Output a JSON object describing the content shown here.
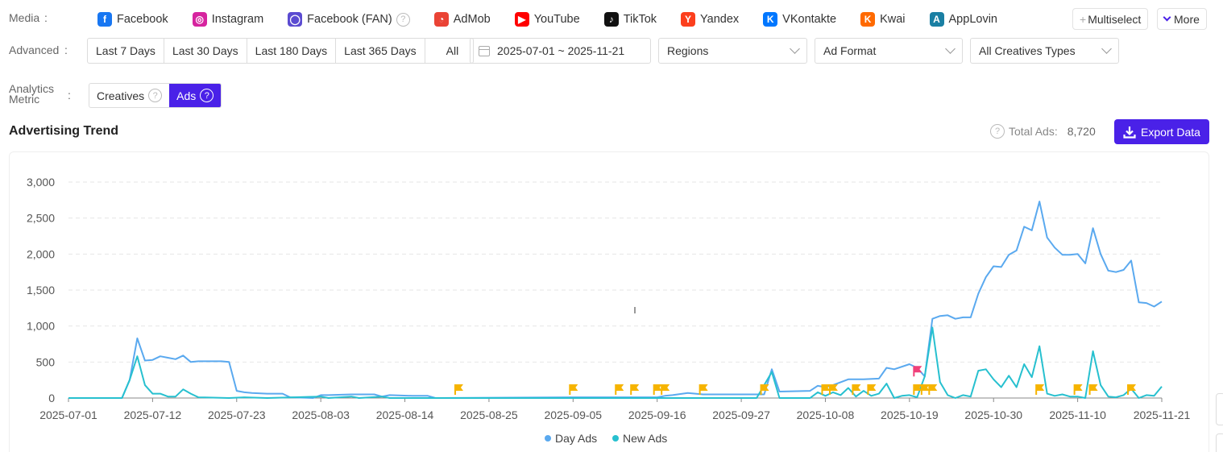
{
  "filters": {
    "media_label": "Media",
    "advanced_label": "Advanced",
    "metric_label_line1": "Analytics",
    "metric_label_line2": "Metric",
    "colon": ":",
    "media": [
      {
        "label": "Facebook",
        "icon": "facebook-icon",
        "color": "#1877f2",
        "glyph": "f"
      },
      {
        "label": "Instagram",
        "icon": "instagram-icon",
        "color": "#d6249f",
        "glyph": "◎"
      },
      {
        "label": "Facebook (FAN)",
        "icon": "facebook-audience-network-icon",
        "color": "#5b4bd1",
        "glyph": "◯"
      },
      {
        "label": "AdMob",
        "icon": "admob-icon",
        "color": "#ea4335",
        "glyph": "◔"
      },
      {
        "label": "YouTube",
        "icon": "youtube-icon",
        "color": "#ff0000",
        "glyph": "▶"
      },
      {
        "label": "TikTok",
        "icon": "tiktok-icon",
        "color": "#111111",
        "glyph": "♪"
      },
      {
        "label": "Yandex",
        "icon": "yandex-icon",
        "color": "#fc3f1d",
        "glyph": "Y"
      },
      {
        "label": "VKontakte",
        "icon": "vkontakte-icon",
        "color": "#0077ff",
        "glyph": "K"
      },
      {
        "label": "Kwai",
        "icon": "kwai-icon",
        "color": "#ff6a00",
        "glyph": "K"
      },
      {
        "label": "AppLovin",
        "icon": "applovin-icon",
        "color": "#1a7fa3",
        "glyph": "A"
      }
    ],
    "multiselect_label": "Multiselect",
    "more_label": "More",
    "date_ranges": [
      "Last 7 Days",
      "Last 30 Days",
      "Last 180 Days",
      "Last 365 Days",
      "All"
    ],
    "date_value": "2025-07-01 ~ 2025-11-21",
    "regions_label": "Regions",
    "ad_format_label": "Ad Format",
    "creative_types_label": "All Creatives Types",
    "metric_options": [
      "Creatives",
      "Ads"
    ],
    "metric_selected": "Ads"
  },
  "trend": {
    "title": "Advertising Trend",
    "total_label": "Total Ads:",
    "total_value": "8,720",
    "export_label": "Export Data"
  },
  "colors": {
    "accent": "#4a21e8",
    "day_ads": "#5aa9ef",
    "new_ads": "#27c0cf",
    "flag": "#f6b400",
    "flag_alt": "#f0407a"
  },
  "chart_data": {
    "type": "line",
    "x_range": [
      "2025-07-01",
      "2025-11-21"
    ],
    "x_ticks": [
      "2025-07-01",
      "2025-07-12",
      "2025-07-23",
      "2025-08-03",
      "2025-08-14",
      "2025-08-25",
      "2025-09-05",
      "2025-09-16",
      "2025-09-27",
      "2025-10-08",
      "2025-10-19",
      "2025-10-30",
      "2025-11-10",
      "2025-11-21"
    ],
    "y_ticks": [
      "0",
      "500",
      "1,000",
      "1,500",
      "2,000",
      "2,500",
      "3,000"
    ],
    "ylim": [
      0,
      3000
    ],
    "grid": true,
    "legend_position": "bottom-center",
    "series": [
      {
        "name": "Day Ads",
        "points": [
          [
            "2025-07-01",
            0
          ],
          [
            "2025-07-08",
            0
          ],
          [
            "2025-07-09",
            250
          ],
          [
            "2025-07-10",
            830
          ],
          [
            "2025-07-11",
            520
          ],
          [
            "2025-07-12",
            530
          ],
          [
            "2025-07-13",
            580
          ],
          [
            "2025-07-14",
            560
          ],
          [
            "2025-07-15",
            540
          ],
          [
            "2025-07-16",
            590
          ],
          [
            "2025-07-17",
            500
          ],
          [
            "2025-07-18",
            510
          ],
          [
            "2025-07-21",
            510
          ],
          [
            "2025-07-22",
            500
          ],
          [
            "2025-07-23",
            100
          ],
          [
            "2025-07-24",
            80
          ],
          [
            "2025-07-25",
            70
          ],
          [
            "2025-07-27",
            60
          ],
          [
            "2025-07-29",
            60
          ],
          [
            "2025-07-30",
            10
          ],
          [
            "2025-08-02",
            0
          ],
          [
            "2025-08-03",
            40
          ],
          [
            "2025-08-04",
            40
          ],
          [
            "2025-08-07",
            50
          ],
          [
            "2025-08-10",
            50
          ],
          [
            "2025-08-11",
            20
          ],
          [
            "2025-08-12",
            40
          ],
          [
            "2025-08-15",
            30
          ],
          [
            "2025-08-17",
            30
          ],
          [
            "2025-08-18",
            0
          ],
          [
            "2025-09-05",
            10
          ],
          [
            "2025-09-16",
            10
          ],
          [
            "2025-09-17",
            30
          ],
          [
            "2025-09-18",
            40
          ],
          [
            "2025-09-20",
            70
          ],
          [
            "2025-09-22",
            50
          ],
          [
            "2025-09-30",
            50
          ],
          [
            "2025-10-01",
            400
          ],
          [
            "2025-10-02",
            90
          ],
          [
            "2025-10-06",
            100
          ],
          [
            "2025-10-07",
            170
          ],
          [
            "2025-10-08",
            150
          ],
          [
            "2025-10-09",
            180
          ],
          [
            "2025-10-11",
            260
          ],
          [
            "2025-10-13",
            260
          ],
          [
            "2025-10-15",
            270
          ],
          [
            "2025-10-16",
            420
          ],
          [
            "2025-10-17",
            400
          ],
          [
            "2025-10-19",
            470
          ],
          [
            "2025-10-20",
            420
          ],
          [
            "2025-10-21",
            300
          ],
          [
            "2025-10-22",
            1100
          ],
          [
            "2025-10-23",
            1140
          ],
          [
            "2025-10-24",
            1150
          ],
          [
            "2025-10-25",
            1100
          ],
          [
            "2025-10-26",
            1120
          ],
          [
            "2025-10-27",
            1120
          ],
          [
            "2025-10-28",
            1450
          ],
          [
            "2025-10-29",
            1680
          ],
          [
            "2025-10-30",
            1830
          ],
          [
            "2025-10-31",
            1820
          ],
          [
            "2025-11-01",
            1990
          ],
          [
            "2025-11-02",
            2050
          ],
          [
            "2025-11-03",
            2380
          ],
          [
            "2025-11-04",
            2330
          ],
          [
            "2025-11-05",
            2730
          ],
          [
            "2025-11-06",
            2230
          ],
          [
            "2025-11-07",
            2090
          ],
          [
            "2025-11-08",
            1990
          ],
          [
            "2025-11-09",
            1990
          ],
          [
            "2025-11-10",
            2000
          ],
          [
            "2025-11-11",
            1870
          ],
          [
            "2025-11-12",
            2360
          ],
          [
            "2025-11-13",
            2000
          ],
          [
            "2025-11-14",
            1770
          ],
          [
            "2025-11-15",
            1750
          ],
          [
            "2025-11-16",
            1780
          ],
          [
            "2025-11-17",
            1910
          ],
          [
            "2025-11-18",
            1330
          ],
          [
            "2025-11-19",
            1320
          ],
          [
            "2025-11-20",
            1270
          ],
          [
            "2025-11-21",
            1340
          ]
        ]
      },
      {
        "name": "New Ads",
        "points": [
          [
            "2025-07-01",
            0
          ],
          [
            "2025-07-08",
            0
          ],
          [
            "2025-07-09",
            250
          ],
          [
            "2025-07-10",
            580
          ],
          [
            "2025-07-11",
            180
          ],
          [
            "2025-07-12",
            60
          ],
          [
            "2025-07-13",
            60
          ],
          [
            "2025-07-14",
            20
          ],
          [
            "2025-07-15",
            20
          ],
          [
            "2025-07-16",
            120
          ],
          [
            "2025-07-17",
            60
          ],
          [
            "2025-07-18",
            10
          ],
          [
            "2025-07-22",
            0
          ],
          [
            "2025-07-24",
            10
          ],
          [
            "2025-07-27",
            0
          ],
          [
            "2025-08-03",
            20
          ],
          [
            "2025-08-04",
            0
          ],
          [
            "2025-08-07",
            20
          ],
          [
            "2025-08-08",
            0
          ],
          [
            "2025-08-11",
            20
          ],
          [
            "2025-08-12",
            0
          ],
          [
            "2025-09-29",
            0
          ],
          [
            "2025-10-01",
            360
          ],
          [
            "2025-10-02",
            0
          ],
          [
            "2025-10-06",
            0
          ],
          [
            "2025-10-07",
            80
          ],
          [
            "2025-10-08",
            30
          ],
          [
            "2025-10-09",
            80
          ],
          [
            "2025-10-10",
            40
          ],
          [
            "2025-10-11",
            140
          ],
          [
            "2025-10-12",
            20
          ],
          [
            "2025-10-13",
            100
          ],
          [
            "2025-10-14",
            30
          ],
          [
            "2025-10-15",
            60
          ],
          [
            "2025-10-16",
            200
          ],
          [
            "2025-10-17",
            0
          ],
          [
            "2025-10-18",
            30
          ],
          [
            "2025-10-19",
            40
          ],
          [
            "2025-10-20",
            10
          ],
          [
            "2025-10-21",
            300
          ],
          [
            "2025-10-22",
            980
          ],
          [
            "2025-10-23",
            220
          ],
          [
            "2025-10-24",
            40
          ],
          [
            "2025-10-25",
            0
          ],
          [
            "2025-10-26",
            40
          ],
          [
            "2025-10-27",
            20
          ],
          [
            "2025-10-28",
            380
          ],
          [
            "2025-10-29",
            400
          ],
          [
            "2025-10-30",
            260
          ],
          [
            "2025-10-31",
            150
          ],
          [
            "2025-11-01",
            310
          ],
          [
            "2025-11-02",
            150
          ],
          [
            "2025-11-03",
            470
          ],
          [
            "2025-11-04",
            290
          ],
          [
            "2025-11-05",
            720
          ],
          [
            "2025-11-06",
            60
          ],
          [
            "2025-11-07",
            30
          ],
          [
            "2025-11-08",
            50
          ],
          [
            "2025-11-09",
            20
          ],
          [
            "2025-11-10",
            20
          ],
          [
            "2025-11-11",
            0
          ],
          [
            "2025-11-12",
            650
          ],
          [
            "2025-11-13",
            180
          ],
          [
            "2025-11-14",
            20
          ],
          [
            "2025-11-15",
            10
          ],
          [
            "2025-11-16",
            40
          ],
          [
            "2025-11-17",
            130
          ],
          [
            "2025-11-18",
            0
          ],
          [
            "2025-11-19",
            40
          ],
          [
            "2025-11-20",
            30
          ],
          [
            "2025-11-21",
            160
          ]
        ]
      }
    ],
    "event_flags": [
      {
        "date": "2025-08-21",
        "kind": "yellow"
      },
      {
        "date": "2025-09-05",
        "kind": "yellow"
      },
      {
        "date": "2025-09-11",
        "kind": "yellow"
      },
      {
        "date": "2025-09-13",
        "kind": "yellow"
      },
      {
        "date": "2025-09-16",
        "kind": "yellow"
      },
      {
        "date": "2025-09-17",
        "kind": "yellow"
      },
      {
        "date": "2025-09-22",
        "kind": "yellow"
      },
      {
        "date": "2025-09-30",
        "kind": "yellow"
      },
      {
        "date": "2025-10-08",
        "kind": "yellow"
      },
      {
        "date": "2025-10-09",
        "kind": "yellow"
      },
      {
        "date": "2025-10-12",
        "kind": "yellow"
      },
      {
        "date": "2025-10-14",
        "kind": "yellow"
      },
      {
        "date": "2025-10-20",
        "kind": "yellow"
      },
      {
        "date": "2025-10-21",
        "kind": "yellow"
      },
      {
        "date": "2025-10-22",
        "kind": "yellow"
      },
      {
        "date": "2025-10-20",
        "kind": "pink"
      },
      {
        "date": "2025-11-05",
        "kind": "yellow"
      },
      {
        "date": "2025-11-10",
        "kind": "yellow"
      },
      {
        "date": "2025-11-12",
        "kind": "yellow"
      },
      {
        "date": "2025-11-17",
        "kind": "yellow"
      }
    ]
  }
}
